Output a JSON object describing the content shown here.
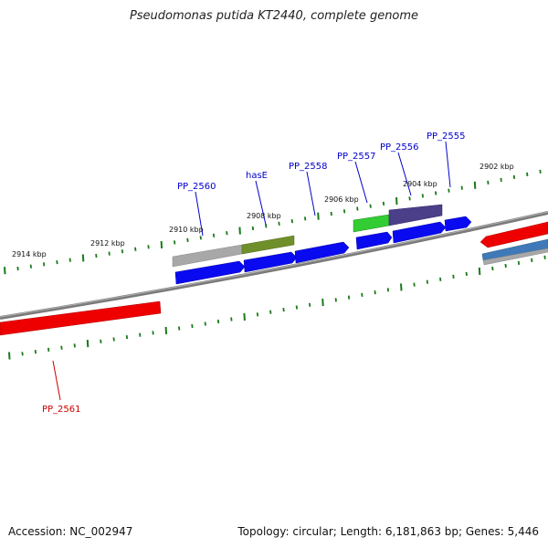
{
  "title": "Pseudomonas putida KT2440, complete genome",
  "footer": {
    "accession": "Accession: NC_002947",
    "summary": "Topology: circular; Length: 6,181,863 bp; Genes: 5,446"
  },
  "colors": {
    "backbone": "#7a7a7a",
    "tick": "#1a7a1a",
    "label_forward": "#0000cc",
    "label_reverse": "#cc0000",
    "gene_blue": "#0a0af0",
    "gene_red": "#ee0000",
    "gene_grey": "#a8a8a8",
    "gene_olive": "#6f8f2a",
    "gene_green": "#33cc33",
    "gene_purple": "#4a3f88",
    "gene_steelblue": "#3f79b8"
  },
  "scale_labels": [
    "2914 kbp",
    "2912 kbp",
    "2910 kbp",
    "2908 kbp",
    "2906 kbp",
    "2904 kbp",
    "2902 kbp"
  ],
  "gene_labels": [
    {
      "text": "PP_2560",
      "strand": "forward"
    },
    {
      "text": "hasE",
      "strand": "forward"
    },
    {
      "text": "PP_2558",
      "strand": "forward"
    },
    {
      "text": "PP_2557",
      "strand": "forward"
    },
    {
      "text": "PP_2556",
      "strand": "forward"
    },
    {
      "text": "PP_2555",
      "strand": "forward"
    },
    {
      "text": "PP_2561",
      "strand": "reverse"
    }
  ]
}
